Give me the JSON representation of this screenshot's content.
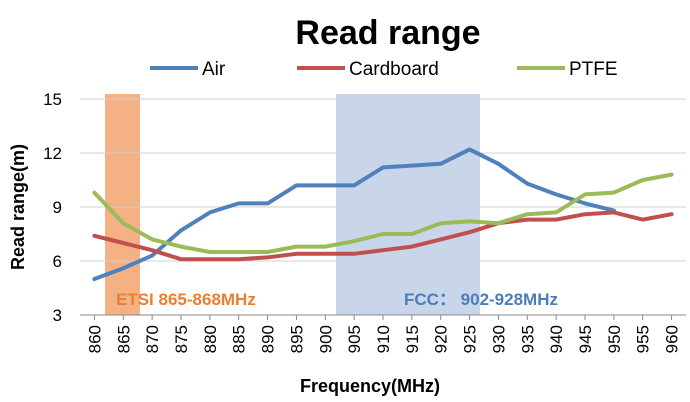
{
  "chart_data": {
    "type": "line",
    "title": "Read range",
    "xlabel": "Frequency(MHz)",
    "ylabel": "Read range(m)",
    "x": [
      860,
      865,
      870,
      875,
      880,
      885,
      890,
      895,
      900,
      905,
      910,
      915,
      920,
      925,
      930,
      935,
      940,
      945,
      950,
      955,
      960
    ],
    "xlim": [
      857.5,
      962.5
    ],
    "ylim": [
      3,
      15
    ],
    "yticks": [
      3,
      6,
      9,
      12,
      15
    ],
    "grid": "horizontal",
    "legend": "top",
    "series": [
      {
        "name": "Air",
        "color": "#4f81bd",
        "values": [
          5.0,
          5.6,
          6.3,
          7.7,
          8.7,
          9.2,
          9.2,
          10.2,
          10.2,
          10.2,
          11.2,
          11.3,
          11.4,
          12.2,
          11.4,
          10.3,
          9.7,
          9.2,
          8.8,
          null,
          null
        ]
      },
      {
        "name": "Cardboard",
        "color": "#c0504d",
        "values": [
          7.4,
          7.0,
          6.6,
          6.1,
          6.1,
          6.1,
          6.2,
          6.4,
          6.4,
          6.4,
          6.6,
          6.8,
          7.2,
          7.6,
          8.1,
          8.3,
          8.3,
          8.6,
          8.7,
          8.3,
          8.6
        ]
      },
      {
        "name": "PTFE",
        "color": "#9bbb59",
        "values": [
          9.8,
          8.1,
          7.2,
          6.8,
          6.5,
          6.5,
          6.5,
          6.8,
          6.8,
          7.1,
          7.5,
          7.5,
          8.1,
          8.2,
          8.1,
          8.6,
          8.7,
          9.7,
          9.8,
          10.5,
          10.8
        ]
      }
    ],
    "bands": [
      {
        "label": "ETSI 865-868MHz",
        "from": 865,
        "to": 868,
        "color": "#f4b183",
        "label_color": "#ed7d31"
      },
      {
        "label": "FCC： 902-928MHz",
        "from": 902,
        "to": 928,
        "color": "#c9d6ea",
        "label_color": "#4a7ebb"
      }
    ]
  }
}
